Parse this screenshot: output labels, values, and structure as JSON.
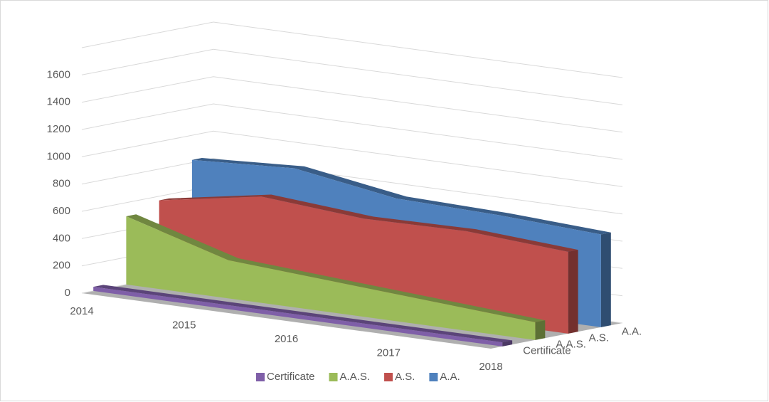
{
  "chart_data": {
    "type": "area3d",
    "categories": [
      "2014",
      "2015",
      "2016",
      "2017",
      "2018"
    ],
    "series": [
      {
        "name": "Certificate",
        "color": "#7f5fa8",
        "values": [
          30,
          30,
          30,
          30,
          30
        ]
      },
      {
        "name": "A.A.S.",
        "color": "#9bbb59",
        "values": [
          500,
          280,
          230,
          180,
          130
        ]
      },
      {
        "name": "A.S.",
        "color": "#c0504d",
        "values": [
          570,
          700,
          640,
          650,
          600
        ]
      },
      {
        "name": "A.A.",
        "color": "#4f81bd",
        "values": [
          820,
          860,
          740,
          720,
          680
        ]
      }
    ],
    "ylim": [
      0,
      1800
    ],
    "yticks": [
      0,
      200,
      400,
      600,
      800,
      1000,
      1200,
      1400,
      1600
    ],
    "grid": true,
    "legend": "bottom"
  }
}
